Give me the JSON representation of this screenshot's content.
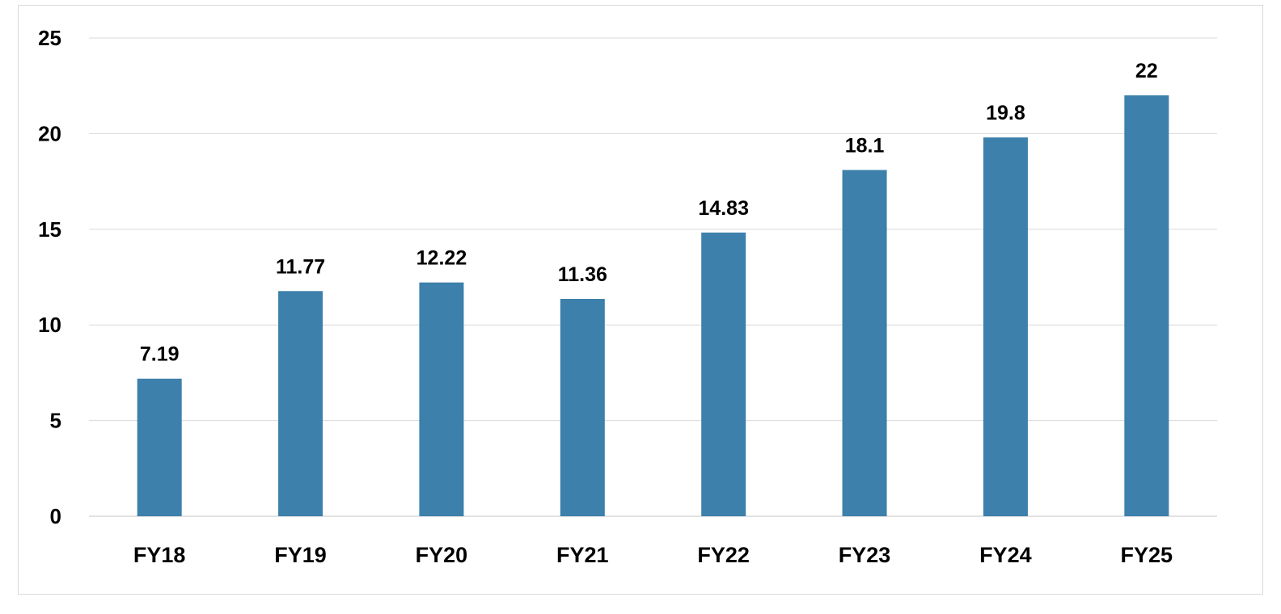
{
  "chart_data": {
    "type": "bar",
    "title": "",
    "xlabel": "",
    "ylabel": "",
    "categories": [
      "FY18",
      "FY19",
      "FY20",
      "FY21",
      "FY22",
      "FY23",
      "FY24",
      "FY25"
    ],
    "values": [
      7.19,
      11.77,
      12.22,
      11.36,
      14.83,
      18.1,
      19.8,
      22
    ],
    "data_labels": [
      "7.19",
      "11.77",
      "12.22",
      "11.36",
      "14.83",
      "18.1",
      "19.8",
      "22"
    ],
    "ylim": [
      0,
      25
    ],
    "yticks": [
      0,
      5,
      10,
      15,
      20,
      25
    ],
    "ytick_labels": [
      "0",
      "5",
      "10",
      "15",
      "20",
      "25"
    ],
    "grid": true,
    "legend": "none",
    "colors": {
      "bar": "#3c80ab",
      "grid": "#d9d9d9",
      "axis": "#d9d9d9",
      "text": "#000000"
    }
  }
}
